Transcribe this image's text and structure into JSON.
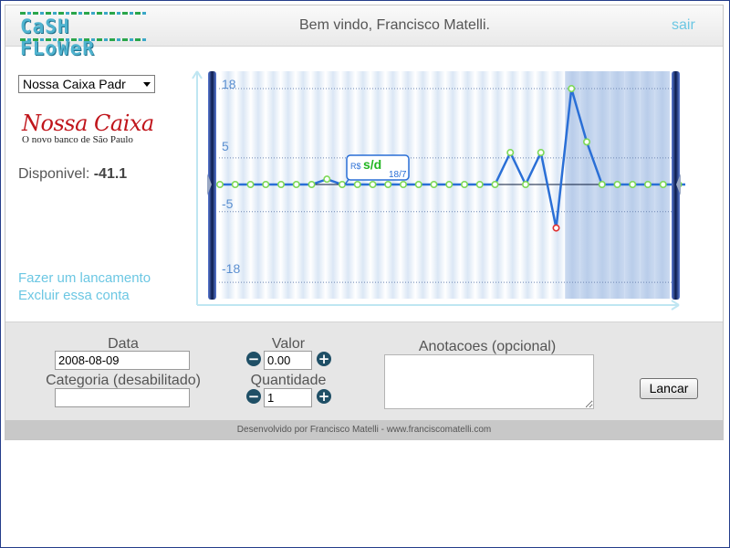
{
  "header": {
    "logo_text": "CaSH FLoWeR",
    "welcome": "Bem vindo, Francisco Matelli.",
    "logout": "sair"
  },
  "sidebar": {
    "account_selected": "Nossa Caixa Padr",
    "bank_name": "Nossa Caixa",
    "bank_slogan": "O novo banco de São Paulo",
    "balance_label": "Disponivel:",
    "balance_value": "-41.1",
    "link_new_entry": "Fazer um lancamento",
    "link_delete_account": "Excluir essa conta"
  },
  "chart_data": {
    "type": "line",
    "y_ticks": [
      "18",
      "5",
      "-5",
      "-18"
    ],
    "y_tick_values": [
      18,
      5,
      -5,
      -18
    ],
    "ylim": [
      -18,
      18
    ],
    "values": [
      0,
      0,
      0,
      0,
      0,
      0,
      0,
      1,
      0,
      0,
      0,
      0,
      0,
      0,
      0,
      0,
      0,
      0,
      0,
      6,
      0,
      6,
      -8,
      18,
      8,
      0,
      0,
      0,
      0,
      0,
      0,
      0,
      3,
      3
    ],
    "negative_color": "#e03030",
    "line_color": "#2a6fd6",
    "point_color": "#7ed957",
    "tooltip": {
      "currency": "R$",
      "value": "s/d",
      "date": "18/7"
    }
  },
  "form": {
    "date_label": "Data",
    "date_value": "2008-08-09",
    "category_label": "Categoria (desabilitado)",
    "category_value": "",
    "value_label": "Valor",
    "value_value": "0.00",
    "quantity_label": "Quantidade",
    "quantity_value": "1",
    "notes_label": "Anotacoes (opcional)",
    "submit": "Lancar",
    "minus": "−",
    "plus": "+"
  },
  "footer": {
    "credit": "Desenvolvido por Francisco Matelli - www.franciscomatelli.com"
  }
}
